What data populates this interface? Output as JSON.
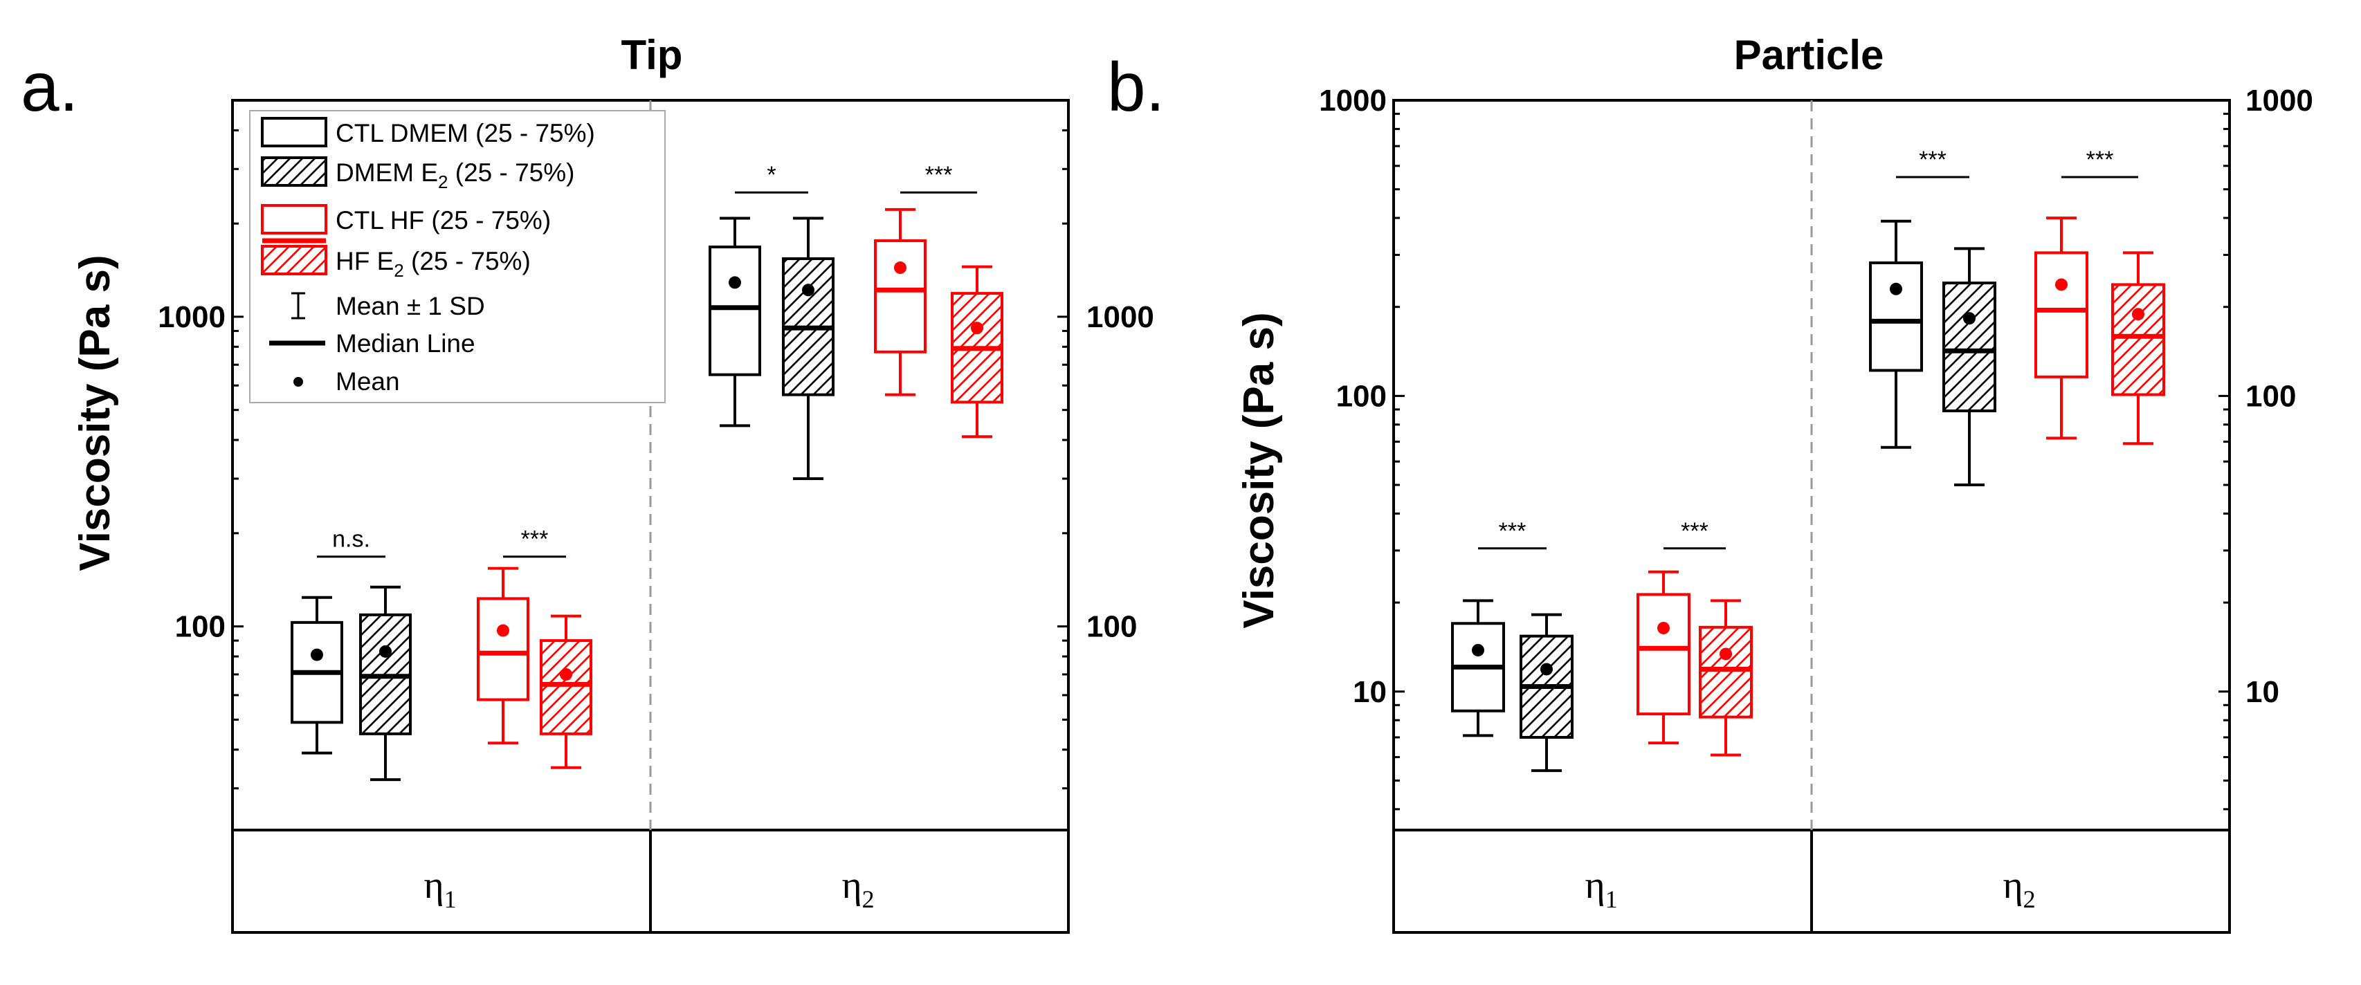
{
  "colors": {
    "black": "#000000",
    "red": "#ff0000",
    "divider": "#999999"
  },
  "legend": {
    "items": [
      {
        "main": "CTL DMEM (25 - 75%)",
        "sub": "",
        "tail": "",
        "color": "#000000",
        "hatch": false
      },
      {
        "main": "DMEM E",
        "sub": "2",
        "tail": " (25 - 75%)",
        "color": "#000000",
        "hatch": true
      },
      {
        "main": "CTL HF (25 - 75%)",
        "sub": "",
        "tail": "",
        "color": "#ff0000",
        "hatch": false
      },
      {
        "main": "HF E",
        "sub": "2",
        "tail": " (25 - 75%)",
        "color": "#ff0000",
        "hatch": true
      }
    ],
    "sd_label": "Mean ± 1 SD",
    "median_label": "Median Line",
    "mean_label": "Mean"
  },
  "chart_data": [
    {
      "panel_label": "a.",
      "title": "Tip",
      "type": "box",
      "ylabel": "Viscosity (Pa s)",
      "yscale": "log",
      "ylim": [
        22,
        5000
      ],
      "yticks": [
        100,
        1000
      ],
      "ytick_labels": [
        "100",
        "1000"
      ],
      "categories": [
        {
          "symbol": "η",
          "sub": "1"
        },
        {
          "symbol": "η",
          "sub": "2"
        }
      ],
      "boxes": [
        {
          "group": 0,
          "series": "CTL DMEM",
          "color": "#000000",
          "hatch": false,
          "whisker_low": 39,
          "q1": 49,
          "median": 71,
          "q3": 103,
          "whisker_high": 124,
          "mean": 81
        },
        {
          "group": 0,
          "series": "DMEM E2",
          "color": "#000000",
          "hatch": true,
          "whisker_low": 32,
          "q1": 45,
          "median": 69,
          "q3": 109,
          "whisker_high": 134,
          "mean": 83
        },
        {
          "group": 0,
          "series": "CTL HF",
          "color": "#ff0000",
          "hatch": false,
          "whisker_low": 42,
          "q1": 58,
          "median": 82,
          "q3": 123,
          "whisker_high": 154,
          "mean": 97
        },
        {
          "group": 0,
          "series": "HF E2",
          "color": "#ff0000",
          "hatch": true,
          "whisker_low": 35,
          "q1": 45,
          "median": 65,
          "q3": 90,
          "whisker_high": 108,
          "mean": 70
        },
        {
          "group": 1,
          "series": "CTL DMEM",
          "color": "#000000",
          "hatch": false,
          "whisker_low": 445,
          "q1": 650,
          "median": 1070,
          "q3": 1680,
          "whisker_high": 2080,
          "mean": 1290
        },
        {
          "group": 1,
          "series": "DMEM E2",
          "color": "#000000",
          "hatch": true,
          "whisker_low": 300,
          "q1": 560,
          "median": 920,
          "q3": 1540,
          "whisker_high": 2080,
          "mean": 1220
        },
        {
          "group": 1,
          "series": "CTL HF",
          "color": "#ff0000",
          "hatch": false,
          "whisker_low": 560,
          "q1": 770,
          "median": 1220,
          "q3": 1760,
          "whisker_high": 2220,
          "mean": 1440
        },
        {
          "group": 1,
          "series": "HF E2",
          "color": "#ff0000",
          "hatch": true,
          "whisker_low": 410,
          "q1": 530,
          "median": 790,
          "q3": 1190,
          "whisker_high": 1450,
          "mean": 920
        }
      ],
      "significance": [
        {
          "between": [
            0,
            1
          ],
          "label": "n.s.",
          "y": 168
        },
        {
          "between": [
            2,
            3
          ],
          "label": "***",
          "y": 168
        },
        {
          "between": [
            4,
            5
          ],
          "label": "*",
          "y": 2520
        },
        {
          "between": [
            6,
            7
          ],
          "label": "***",
          "y": 2520
        }
      ]
    },
    {
      "panel_label": "b.",
      "title": "Particle",
      "type": "box",
      "ylabel": "Viscosity (Pa s)",
      "yscale": "log",
      "ylim": [
        3.4,
        1000
      ],
      "yticks": [
        10,
        100,
        1000
      ],
      "ytick_labels": [
        "10",
        "100",
        "1000"
      ],
      "categories": [
        {
          "symbol": "η",
          "sub": "1"
        },
        {
          "symbol": "η",
          "sub": "2"
        }
      ],
      "boxes": [
        {
          "group": 0,
          "series": "CTL DMEM",
          "color": "#000000",
          "hatch": false,
          "whisker_low": 7.1,
          "q1": 8.6,
          "median": 12.1,
          "q3": 17,
          "whisker_high": 20.3,
          "mean": 13.8
        },
        {
          "group": 0,
          "series": "DMEM E2",
          "color": "#000000",
          "hatch": true,
          "whisker_low": 5.4,
          "q1": 7,
          "median": 10.4,
          "q3": 15.4,
          "whisker_high": 18.2,
          "mean": 11.9
        },
        {
          "group": 0,
          "series": "CTL HF",
          "color": "#ff0000",
          "hatch": false,
          "whisker_low": 6.7,
          "q1": 8.4,
          "median": 14,
          "q3": 21.3,
          "whisker_high": 25.4,
          "mean": 16.4
        },
        {
          "group": 0,
          "series": "HF E2",
          "color": "#ff0000",
          "hatch": true,
          "whisker_low": 6.1,
          "q1": 8.2,
          "median": 11.9,
          "q3": 16.5,
          "whisker_high": 20.3,
          "mean": 13.4
        },
        {
          "group": 1,
          "series": "CTL DMEM",
          "color": "#000000",
          "hatch": false,
          "whisker_low": 67,
          "q1": 122,
          "median": 179,
          "q3": 282,
          "whisker_high": 390,
          "mean": 230
        },
        {
          "group": 1,
          "series": "DMEM E2",
          "color": "#000000",
          "hatch": true,
          "whisker_low": 50,
          "q1": 89,
          "median": 142,
          "q3": 241,
          "whisker_high": 315,
          "mean": 183
        },
        {
          "group": 1,
          "series": "CTL HF",
          "color": "#ff0000",
          "hatch": false,
          "whisker_low": 72,
          "q1": 116,
          "median": 195,
          "q3": 305,
          "whisker_high": 400,
          "mean": 238
        },
        {
          "group": 1,
          "series": "HF E2",
          "color": "#ff0000",
          "hatch": true,
          "whisker_low": 69,
          "q1": 101,
          "median": 159,
          "q3": 238,
          "whisker_high": 305,
          "mean": 189
        }
      ],
      "significance": [
        {
          "between": [
            0,
            1
          ],
          "label": "***",
          "y": 30.5
        },
        {
          "between": [
            2,
            3
          ],
          "label": "***",
          "y": 30.5
        },
        {
          "between": [
            4,
            5
          ],
          "label": "***",
          "y": 550
        },
        {
          "between": [
            6,
            7
          ],
          "label": "***",
          "y": 550
        }
      ]
    }
  ]
}
